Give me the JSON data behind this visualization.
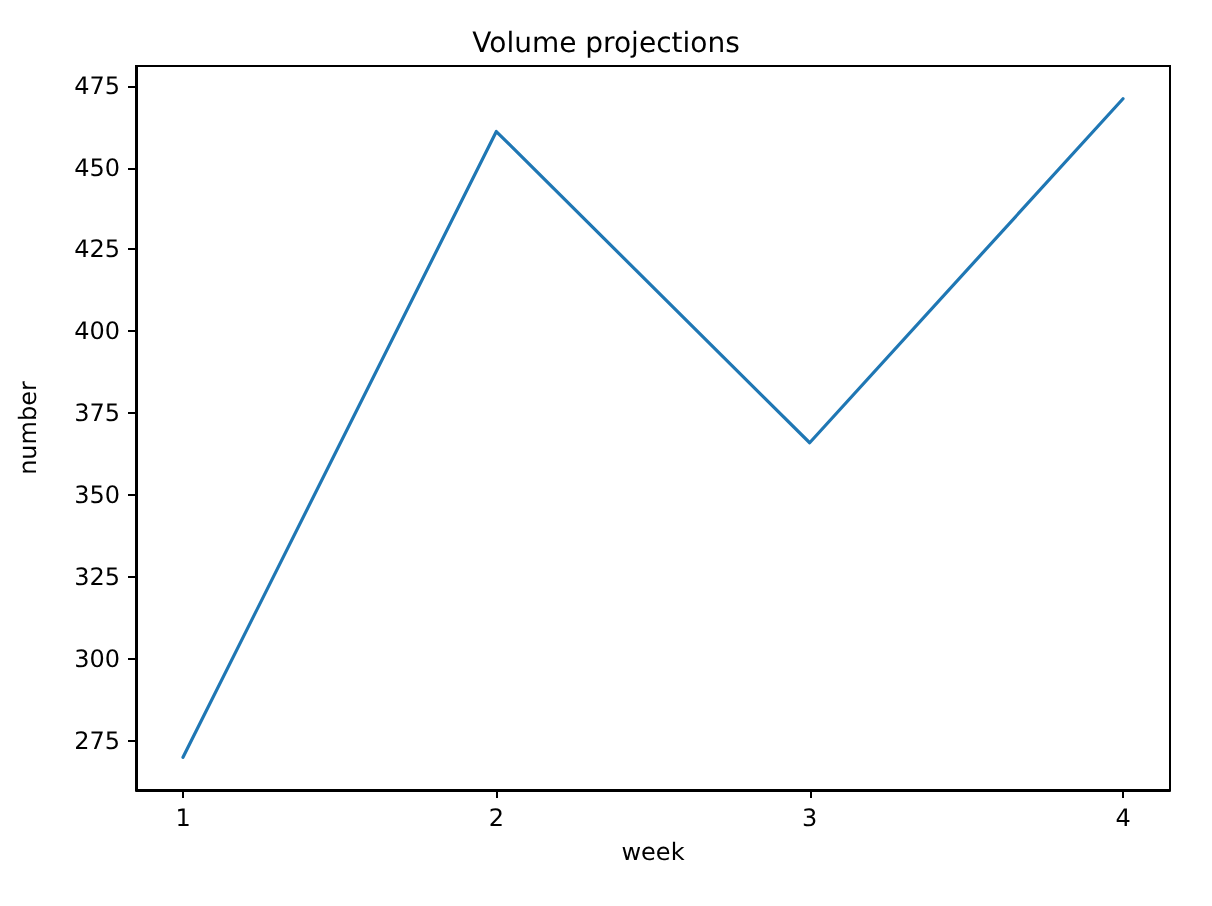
{
  "chart_data": {
    "type": "line",
    "title": "Volume projections",
    "xlabel": "week",
    "ylabel": "number",
    "x": [
      1,
      2,
      3,
      4
    ],
    "series": [
      {
        "color": "#1f77b4",
        "values": [
          270,
          461,
          366,
          471
        ]
      }
    ],
    "xlim": [
      0.85,
      4.15
    ],
    "xticks": [
      1,
      2,
      3,
      4
    ],
    "ylim": [
      260,
      481
    ],
    "yticks": [
      275,
      300,
      325,
      350,
      375,
      400,
      425,
      450,
      475
    ],
    "grid": false,
    "marker": "none",
    "line_style": "solid"
  }
}
